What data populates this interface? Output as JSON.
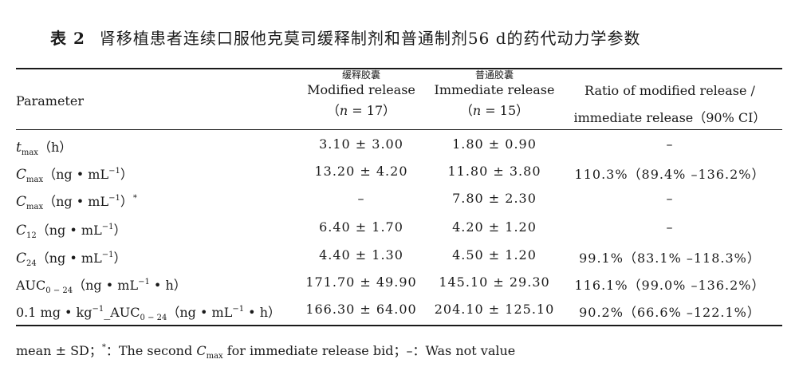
{
  "caption": {
    "number": "表 2",
    "title": "肾移植患者连续口服他克莫司缓释制剂和普通制剂56 d的药代动力学参数"
  },
  "headers": {
    "parameter": "Parameter",
    "modified": {
      "cn": "缓释胶囊",
      "en": "Modified release",
      "n_prefix": "（",
      "n_var": "n",
      "n_suffix": " = 17）"
    },
    "immediate": {
      "cn": "普通胶囊",
      "en": "Immediate release",
      "n_prefix": "（",
      "n_var": "n",
      "n_suffix": " = 15）"
    },
    "ratio": {
      "line1": "Ratio of modified release /",
      "line2": "immediate release（90% CI）"
    }
  },
  "rows": [
    {
      "sym": "t",
      "sub": "max",
      "pre": "",
      "unit": "（h）",
      "modified": "3.10 ± 3.00",
      "immediate": "1.80  ± 0.90",
      "ratio": "–"
    },
    {
      "sym": "C",
      "sub": "max",
      "pre": "",
      "unit": "（ng • mL",
      "unit_sup": "−1",
      "unit_end": "）",
      "modified": "13.20 ± 4.20",
      "immediate": "11.80  ± 3.80",
      "ratio": "110.3%（89.4% –136.2%）"
    },
    {
      "sym": "C",
      "sub": "max",
      "pre": "",
      "unit": "（ng • mL",
      "unit_sup": "−1",
      "unit_end": "）",
      "mark": "*",
      "modified": "–",
      "immediate": "7.80  ± 2.30",
      "ratio": "–"
    },
    {
      "sym": "C",
      "sub": "12",
      "pre": "",
      "unit": "（ng • mL",
      "unit_sup": "−1",
      "unit_end": "）",
      "modified": "6.40 ± 1.70",
      "immediate": "4.20  ± 1.20",
      "ratio": "–"
    },
    {
      "sym": "C",
      "sub": "24",
      "pre": "",
      "unit": "（ng • mL",
      "unit_sup": "−1",
      "unit_end": "）",
      "modified": "4.40 ± 1.30",
      "immediate": "4.50  ± 1.20",
      "ratio": "99.1%（83.1% –118.3%）"
    },
    {
      "sym": "",
      "pre": "AUC",
      "sub": "0 − 24",
      "unit": "（ng • mL",
      "unit_sup": "−1",
      "unit_end": " • h）",
      "modified": "171.70 ± 49.90",
      "immediate": "145.10  ± 29.30",
      "ratio": "116.1%（99.0% –136.2%）"
    },
    {
      "sym": "",
      "pre": "0.1 mg • kg",
      "pre_sup": "−1",
      "pre2": "_AUC",
      "sub": "0 − 24",
      "unit": "（ng • mL",
      "unit_sup": "−1",
      "unit_end": " • h）",
      "modified": "166.30 ± 64.00",
      "immediate": "204.10  ± 125.10",
      "ratio": "90.2%（66.6% –122.1%）"
    }
  ],
  "footnote": {
    "part1": "mean ± SD；",
    "star": "*",
    "part2": "：The second ",
    "c": "C",
    "c_sub": "max",
    "part3": " for immediate release bid；–：Was not value"
  }
}
